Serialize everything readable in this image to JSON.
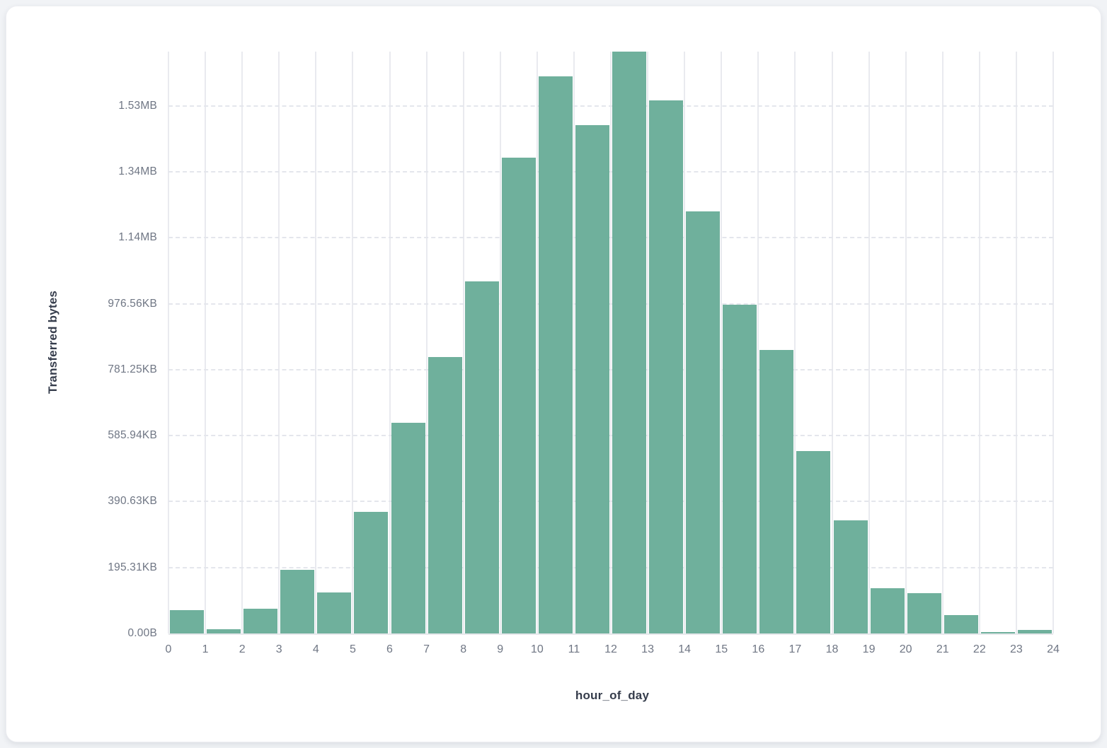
{
  "page": {
    "background_color": "#f1f3f6",
    "card_background_color": "#ffffff"
  },
  "chart_data": {
    "type": "bar",
    "subtype": "histogram",
    "title": "",
    "xlabel": "hour_of_day",
    "ylabel": "Transferred bytes",
    "categories": [
      0,
      1,
      2,
      3,
      4,
      5,
      6,
      7,
      8,
      9,
      10,
      11,
      12,
      13,
      14,
      15,
      16,
      17,
      18,
      19,
      20,
      21,
      22,
      23
    ],
    "values": [
      71000,
      12000,
      76000,
      194000,
      125000,
      368000,
      640000,
      838000,
      1067000,
      1443000,
      1690000,
      1543000,
      1765000,
      1616000,
      1280000,
      998000,
      859000,
      554000,
      343000,
      138000,
      123000,
      56000,
      4000,
      11000
    ],
    "values_unit": "bytes",
    "x_tick_labels": [
      "0",
      "1",
      "2",
      "3",
      "4",
      "5",
      "6",
      "7",
      "8",
      "9",
      "10",
      "11",
      "12",
      "13",
      "14",
      "15",
      "16",
      "17",
      "18",
      "19",
      "20",
      "21",
      "22",
      "23",
      "24"
    ],
    "y_tick_labels": [
      "0.00B",
      "195.31KB",
      "390.63KB",
      "585.94KB",
      "781.25KB",
      "976.56KB",
      "1.14MB",
      "1.34MB",
      "1.53MB"
    ],
    "y_tick_values": [
      0,
      200000,
      400000,
      600000,
      800000,
      1000000,
      1200000,
      1400000,
      1600000
    ],
    "xlim": [
      0,
      24
    ],
    "ylim": [
      0,
      1765000
    ],
    "grid": "vertical-solid, horizontal-dashed",
    "legend_position": "none",
    "bar_color": "#6fb09c",
    "tick_label_color": "#6f7684",
    "axis_title_color": "#363d4c"
  }
}
